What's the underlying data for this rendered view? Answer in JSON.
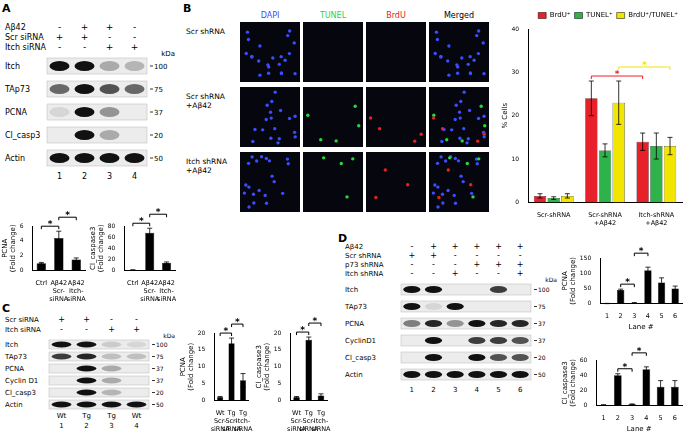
{
  "panel_labels": [
    "A",
    "B",
    "C",
    "D"
  ],
  "blots": [
    {
      "unit": "kDa",
      "treatments": [
        {
          "label": "Aβ42",
          "signs": [
            "-",
            "+",
            "+",
            "-"
          ]
        },
        {
          "label": "Scr siRNA",
          "signs": [
            "+",
            "+",
            "-",
            "-"
          ]
        },
        {
          "label": "Itch siRNA",
          "signs": [
            "-",
            "-",
            "+",
            "+"
          ]
        }
      ],
      "rows": [
        {
          "label": "Itch",
          "kda": "100",
          "bands": [
            1,
            1,
            0.3,
            0.25
          ]
        },
        {
          "label": "TAp73",
          "kda": "75",
          "bands": [
            0.6,
            1,
            0.7,
            0.6
          ]
        },
        {
          "label": "PCNA",
          "kda": "37",
          "bands": [
            0.1,
            1,
            0.4,
            0
          ]
        },
        {
          "label": "Cl_casp3",
          "kda": "20",
          "bands": [
            0,
            1,
            0.3,
            0
          ]
        },
        {
          "label": "Actin",
          "kda": "50",
          "bands": [
            1,
            1,
            1,
            1
          ]
        }
      ],
      "lanes": [
        "1",
        "2",
        "3",
        "4"
      ]
    },
    {
      "unit": "kDa",
      "treatments": [
        {
          "label": "Scr siRNA",
          "signs": [
            "+",
            "+",
            "-",
            "-"
          ]
        },
        {
          "label": "Itch siRNA",
          "signs": [
            "-",
            "-",
            "+",
            "+"
          ]
        }
      ],
      "rows": [
        {
          "label": "Itch",
          "kda": "100",
          "bands": [
            1,
            1,
            0.15,
            0.1
          ]
        },
        {
          "label": "TAp73",
          "kda": "75",
          "bands": [
            0.8,
            0.9,
            0.2,
            0.2
          ]
        },
        {
          "label": "PCNA",
          "kda": "37",
          "bands": [
            0,
            1,
            0.3,
            0
          ]
        },
        {
          "label": "Cyclin D1",
          "kda": "37",
          "bands": [
            0,
            1,
            0.3,
            0
          ]
        },
        {
          "label": "Cl_casp3",
          "kda": "20",
          "bands": [
            0,
            1,
            0.25,
            0
          ]
        },
        {
          "label": "Actin",
          "kda": "50",
          "bands": [
            1,
            1,
            1,
            1
          ]
        }
      ],
      "lane_labels": [
        "Wt",
        "Tg",
        "Tg",
        "Wt"
      ],
      "lanes": [
        "1",
        "2",
        "3",
        "4"
      ]
    },
    {
      "unit": "kDa",
      "treatments": [
        {
          "label": "Aβ42",
          "signs": [
            "-",
            "+",
            "+",
            "+",
            "+",
            "+"
          ]
        },
        {
          "label": "Scr shRNA",
          "signs": [
            "+",
            "+",
            "-",
            "-",
            "-",
            "-"
          ]
        },
        {
          "label": "p73 shRNA",
          "signs": [
            "-",
            "-",
            "-",
            "+",
            "+",
            "+"
          ]
        },
        {
          "label": "Itch shRNA",
          "signs": [
            "-",
            "-",
            "+",
            "-",
            "-",
            "+"
          ]
        }
      ],
      "rows": [
        {
          "label": "Itch",
          "kda": "100",
          "bands": [
            1,
            1,
            0,
            0,
            0.8,
            0
          ]
        },
        {
          "label": "TAp73",
          "kda": "75",
          "bands": [
            1,
            0.1,
            1,
            0,
            0,
            0
          ]
        },
        {
          "label": "PCNA",
          "kda": "37",
          "bands": [
            0.5,
            0.9,
            0.4,
            1,
            0.9,
            0.9
          ]
        },
        {
          "label": "CyclinD1",
          "kda": "37",
          "bands": [
            0,
            1,
            0,
            0.8,
            0.8,
            0.7
          ]
        },
        {
          "label": "Cl_casp3",
          "kda": "20",
          "bands": [
            0,
            1,
            0,
            1,
            0.7,
            0.7
          ]
        },
        {
          "label": "Actin",
          "kda": "50",
          "bands": [
            1,
            1,
            1,
            1,
            1,
            1
          ]
        }
      ],
      "lanes": [
        "1",
        "2",
        "3",
        "4",
        "5",
        "6"
      ]
    }
  ],
  "images": {
    "columns": [
      {
        "label": "DAPI",
        "color": "#3a4dff",
        "counts": [
          22,
          18,
          20
        ]
      },
      {
        "label": "TUNEL",
        "color": "#27d83a",
        "counts": [
          0,
          5,
          4
        ]
      },
      {
        "label": "BrdU",
        "color": "#e52222",
        "counts": [
          0,
          4,
          3
        ]
      },
      {
        "label": "Merged",
        "color": "#000000"
      }
    ],
    "rows": [
      [
        "Scr shRNA"
      ],
      [
        "Scr shRNA",
        "+Aβ42"
      ],
      [
        "Itch shRNA",
        "+Aβ42"
      ]
    ]
  },
  "chart_data": [
    {
      "type": "bar",
      "categories": [
        [
          "Ctrl"
        ],
        [
          "Aβ42",
          "Scr-",
          "siRNA"
        ],
        [
          "Aβ42",
          "Itch-",
          "siRNA"
        ]
      ],
      "values": [
        1,
        4.4,
        1.5
      ],
      "errors": [
        0.1,
        0.9,
        0.2
      ],
      "color": "#000000",
      "y_label": [
        "PCNA",
        "(Fold change)"
      ],
      "ylim": [
        0,
        6
      ],
      "yticks": [
        0,
        2,
        4,
        6
      ],
      "grid": false,
      "annotations": [
        {
          "text": "*",
          "from": 0,
          "to": 1
        },
        {
          "text": "*",
          "from": 1,
          "to": 2
        }
      ]
    },
    {
      "type": "bar",
      "categories": [
        [
          "Ctrl"
        ],
        [
          "Aβ42",
          "Scr-",
          "siRNA"
        ],
        [
          "Aβ42",
          "Itch-",
          "siRNA"
        ]
      ],
      "values": [
        1,
        68,
        14
      ],
      "errors": [
        0.5,
        8,
        1.5
      ],
      "color": "#000000",
      "y_label": [
        "Cl_caspase3",
        "(Fold change)"
      ],
      "ylim": [
        0,
        80
      ],
      "yticks": [
        0,
        20,
        40,
        60,
        80
      ],
      "grid": false,
      "annotations": [
        {
          "text": "*",
          "from": 0,
          "to": 1
        },
        {
          "text": "*",
          "from": 1,
          "to": 2
        }
      ]
    },
    {
      "type": "bar",
      "categories": [
        [
          "Scr-shRNA"
        ],
        [
          "Scr-shRNA",
          "+Aβ42"
        ],
        [
          "Itch-shRNA",
          "+Aβ42"
        ]
      ],
      "series": [
        {
          "name": "BrdU⁺",
          "color": "#e8202a",
          "values": [
            1.5,
            24,
            14
          ],
          "errors": [
            0.5,
            4,
            2
          ]
        },
        {
          "name": "TUNEL⁺",
          "color": "#2db34a",
          "values": [
            1,
            12,
            13
          ],
          "errors": [
            0.3,
            1.5,
            3
          ]
        },
        {
          "name": "BrdU⁺/TUNEL⁺",
          "color": "#f2e600",
          "values": [
            1.5,
            23,
            13
          ],
          "errors": [
            0.5,
            5,
            2
          ]
        }
      ],
      "y_label": "% Cells",
      "ylim": [
        0,
        40
      ],
      "yticks": [
        0,
        10,
        20,
        30,
        40
      ],
      "grid": false,
      "legend": "top-right",
      "annotations": [
        {
          "text": "*",
          "from": 1,
          "to": 2,
          "series": 0
        },
        {
          "text": "*",
          "from": 1,
          "to": 2,
          "series": 2
        }
      ]
    },
    {
      "type": "bar",
      "categories": [
        [
          "Wt",
          "Scr-",
          "siRNA"
        ],
        [
          "Tg",
          "Scr-",
          "siRNA"
        ],
        [
          "Tg",
          "Itch-",
          "siRNA"
        ]
      ],
      "values": [
        1,
        17,
        6
      ],
      "errors": [
        0.2,
        1.5,
        2
      ],
      "color": "#000000",
      "y_label": [
        "PCNA",
        "(Fold change)"
      ],
      "ylim": [
        0,
        20
      ],
      "yticks": [
        0,
        5,
        10,
        15,
        20
      ],
      "grid": false,
      "annotations": [
        {
          "text": "*",
          "from": 0,
          "to": 1
        },
        {
          "text": "*",
          "from": 1,
          "to": 2
        }
      ]
    },
    {
      "type": "bar",
      "categories": [
        [
          "Wt",
          "Scr-",
          "siRNA"
        ],
        [
          "Tg",
          "Scr-",
          "siRNA"
        ],
        [
          "Tg",
          "Itch-",
          "siRNA"
        ]
      ],
      "values": [
        1,
        18,
        1.5
      ],
      "errors": [
        0.2,
        0.8,
        0.5
      ],
      "color": "#000000",
      "y_label": [
        "Cl_caspase3",
        "(Fold change)"
      ],
      "ylim": [
        0,
        20
      ],
      "yticks": [
        0,
        5,
        10,
        15,
        20
      ],
      "grid": false,
      "annotations": [
        {
          "text": "*",
          "from": 0,
          "to": 1
        },
        {
          "text": "*",
          "from": 1,
          "to": 2
        }
      ]
    },
    {
      "type": "bar",
      "categories": [
        "1",
        "2",
        "3",
        "4",
        "5",
        "6"
      ],
      "values": [
        1,
        45,
        3,
        110,
        70,
        50
      ],
      "errors": [
        0.5,
        3,
        1,
        10,
        15,
        8
      ],
      "color": "#000000",
      "x_label": "Lane #",
      "y_label": [
        "PCNA",
        "(Fold change)"
      ],
      "ylim": [
        0,
        150
      ],
      "yticks": [
        0,
        50,
        100,
        150
      ],
      "grid": false,
      "annotations": [
        {
          "text": "*",
          "from": 1,
          "to": 2
        },
        {
          "text": "*",
          "from": 2,
          "to": 3
        }
      ]
    },
    {
      "type": "bar",
      "categories": [
        "1",
        "2",
        "3",
        "4",
        "5",
        "6"
      ],
      "values": [
        1,
        40,
        2,
        48,
        25,
        25
      ],
      "errors": [
        0.5,
        2,
        0.5,
        3,
        8,
        8
      ],
      "color": "#000000",
      "x_label": "Lane #",
      "y_label": [
        "Cl_caspase3",
        "(Fold change)"
      ],
      "ylim": [
        0,
        60
      ],
      "yticks": [
        0,
        20,
        40,
        60
      ],
      "grid": false,
      "annotations": [
        {
          "text": "*",
          "from": 1,
          "to": 2
        },
        {
          "text": "*",
          "from": 2,
          "to": 3
        }
      ]
    }
  ]
}
